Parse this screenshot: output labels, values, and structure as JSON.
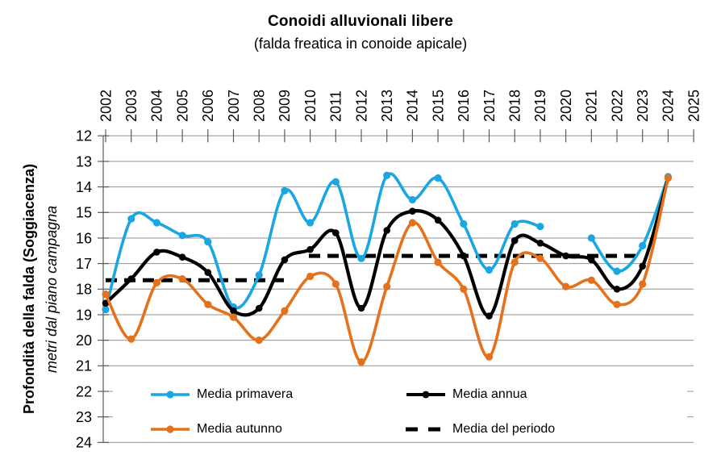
{
  "title": "Conoidi alluvionali libere",
  "subtitle": "(falda freatica in conoide apicale)",
  "y_axis": {
    "title_bold": "Profondità della falda (Soggiacenza)",
    "title_italic": "metri dal piano campagna",
    "min": 12,
    "max": 24,
    "ticks": [
      12,
      13,
      14,
      15,
      16,
      17,
      18,
      19,
      20,
      21,
      22,
      23,
      24
    ]
  },
  "x_axis": {
    "years": [
      2002,
      2003,
      2004,
      2005,
      2006,
      2007,
      2008,
      2009,
      2010,
      2011,
      2012,
      2013,
      2014,
      2015,
      2016,
      2017,
      2018,
      2019,
      2020,
      2021,
      2022,
      2023,
      2024,
      2025
    ]
  },
  "colors": {
    "grid": "#909090",
    "axis": "#595959",
    "text": "#000000",
    "background": "#ffffff"
  },
  "chart_data": {
    "type": "line",
    "title": "Conoidi alluvionali libere",
    "subtitle": "(falda freatica in conoide apicale)",
    "ylabel": "Profondità della falda (Soggiacenza) - metri dal piano campagna",
    "ylim": [
      12,
      24
    ],
    "y_axis_inverted": true,
    "xlim": [
      2002,
      2025
    ],
    "grid": "horizontal",
    "legend_position": "bottom-inside",
    "line_smoothing": true,
    "x": [
      2002,
      2003,
      2004,
      2005,
      2006,
      2007,
      2008,
      2009,
      2010,
      2011,
      2012,
      2013,
      2014,
      2015,
      2016,
      2017,
      2018,
      2019,
      2020,
      2021,
      2022,
      2023,
      2024
    ],
    "series": [
      {
        "name": "Media primavera",
        "color": "#1AA7E1",
        "marker": "circle",
        "values": [
          18.8,
          15.25,
          15.4,
          15.9,
          16.15,
          18.7,
          17.45,
          14.15,
          15.4,
          13.8,
          16.8,
          13.55,
          14.5,
          13.65,
          15.45,
          17.25,
          15.45,
          15.55,
          null,
          16.0,
          17.3,
          16.3,
          13.6
        ],
        "gaps": [
          2020
        ]
      },
      {
        "name": "Media annua",
        "color": "#000000",
        "marker": "circle",
        "values": [
          18.55,
          17.6,
          16.55,
          16.75,
          17.35,
          18.85,
          18.75,
          16.85,
          16.45,
          15.8,
          18.75,
          15.7,
          14.95,
          15.3,
          16.7,
          19.05,
          16.1,
          16.2,
          16.7,
          16.85,
          18.0,
          17.1,
          13.65
        ]
      },
      {
        "name": "Media autunno",
        "color": "#E4711C",
        "marker": "circle",
        "values": [
          18.2,
          19.95,
          17.75,
          17.6,
          18.6,
          19.1,
          20.0,
          18.85,
          17.5,
          17.8,
          20.85,
          17.9,
          15.4,
          16.95,
          18.0,
          20.65,
          16.95,
          16.8,
          17.9,
          17.65,
          18.6,
          17.8,
          13.65
        ]
      },
      {
        "name": "Media del periodo",
        "color": "#000000",
        "style": "dashed",
        "segments": [
          {
            "x_start": 2002,
            "x_end": 2009.1,
            "value": 17.65
          },
          {
            "x_start": 2009.95,
            "x_end": 2022.75,
            "value": 16.7
          }
        ]
      }
    ]
  }
}
